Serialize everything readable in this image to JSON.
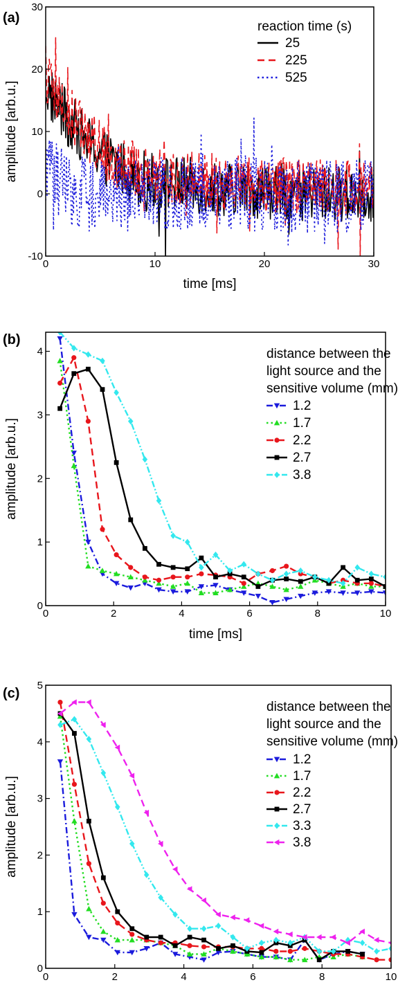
{
  "chart_data": [
    {
      "type": "line",
      "panel": "(a)",
      "xlabel": "time [ms]",
      "ylabel": "amplitude [arb.u.]",
      "xlim": [
        0,
        30
      ],
      "ylim": [
        -10,
        30
      ],
      "xticks": [
        "0",
        "10",
        "20",
        "30"
      ],
      "yticks": [
        "-10",
        "0",
        "10",
        "20",
        "30"
      ],
      "legend_title": [
        "reaction time (s)"
      ],
      "legend_position": "top-right",
      "noisy": true,
      "series": [
        {
          "name": "25",
          "color": "#000000",
          "dash": "solid",
          "marker": "none",
          "x": [
            0,
            2,
            4,
            6,
            8,
            10,
            15,
            20,
            25,
            30
          ],
          "y": [
            17,
            12,
            8,
            5,
            3,
            2,
            1,
            0.5,
            0,
            0
          ]
        },
        {
          "name": "225",
          "color": "#e8161c",
          "dash": "dash",
          "marker": "none",
          "x": [
            0,
            2,
            4,
            6,
            8,
            10,
            15,
            20,
            25,
            30
          ],
          "y": [
            18,
            13,
            9,
            6,
            4,
            3,
            2,
            1.5,
            1,
            1
          ]
        },
        {
          "name": "525",
          "color": "#1b1bdc",
          "dash": "dot",
          "marker": "none",
          "x": [
            0,
            2,
            4,
            6,
            8,
            10,
            15,
            20,
            25,
            30
          ],
          "y": [
            3,
            1,
            0,
            0,
            0,
            0,
            0,
            0,
            -0.5,
            -0.5
          ]
        }
      ]
    },
    {
      "type": "line",
      "panel": "(b)",
      "xlabel": "time [ms]",
      "ylabel": "amplitude [arb.u.]",
      "xlim": [
        0,
        10
      ],
      "ylim": [
        0,
        4.3
      ],
      "xticks": [
        "0",
        "2",
        "4",
        "6",
        "8",
        "10"
      ],
      "yticks": [
        "0",
        "1",
        "2",
        "3",
        "4"
      ],
      "legend_title": [
        "distance between the",
        "light source and the",
        "sensitive volume (mm)"
      ],
      "legend_position": "top-right",
      "noisy": false,
      "series": [
        {
          "name": "1.2",
          "color": "#1b1bdc",
          "dash": "dashdot",
          "marker": "tri-down",
          "x": [
            0.42,
            0.83,
            1.25,
            1.67,
            2.08,
            2.5,
            2.92,
            3.33,
            3.75,
            4.17,
            4.58,
            5.0,
            5.42,
            5.83,
            6.25,
            6.67,
            7.08,
            7.5,
            7.92,
            8.33,
            8.75,
            9.17,
            9.58,
            10.0
          ],
          "y": [
            4.2,
            2.4,
            1.0,
            0.5,
            0.35,
            0.28,
            0.35,
            0.25,
            0.22,
            0.22,
            0.3,
            0.32,
            0.25,
            0.2,
            0.15,
            0.05,
            0.1,
            0.15,
            0.2,
            0.22,
            0.2,
            0.2,
            0.22,
            0.2
          ]
        },
        {
          "name": "1.7",
          "color": "#22dd22",
          "dash": "dot",
          "marker": "tri-up",
          "x": [
            0.42,
            0.83,
            1.25,
            1.67,
            2.08,
            2.5,
            2.92,
            3.33,
            3.75,
            4.17,
            4.58,
            5.0,
            5.42,
            5.83,
            6.25,
            6.67,
            7.08,
            7.5,
            7.92,
            8.33,
            8.75,
            9.17,
            9.58,
            10.0
          ],
          "y": [
            3.85,
            2.2,
            0.62,
            0.55,
            0.5,
            0.45,
            0.4,
            0.35,
            0.3,
            0.35,
            0.2,
            0.2,
            0.25,
            0.3,
            0.35,
            0.3,
            0.25,
            0.3,
            0.4,
            0.35,
            0.3,
            0.35,
            0.3,
            0.3
          ]
        },
        {
          "name": "2.2",
          "color": "#e8161c",
          "dash": "dash",
          "marker": "circle",
          "x": [
            0.42,
            0.83,
            1.25,
            1.67,
            2.08,
            2.5,
            2.92,
            3.33,
            3.75,
            4.17,
            4.58,
            5.0,
            5.42,
            5.83,
            6.25,
            6.67,
            7.08,
            7.5,
            7.92,
            8.33,
            8.75,
            9.17,
            9.58,
            10.0
          ],
          "y": [
            3.5,
            3.9,
            2.9,
            1.2,
            0.8,
            0.6,
            0.45,
            0.4,
            0.45,
            0.45,
            0.5,
            0.48,
            0.45,
            0.35,
            0.5,
            0.55,
            0.62,
            0.5,
            0.45,
            0.35,
            0.4,
            0.35,
            0.35,
            0.3
          ]
        },
        {
          "name": "2.7",
          "color": "#000000",
          "dash": "solid",
          "marker": "square",
          "x": [
            0.42,
            0.83,
            1.25,
            1.67,
            2.08,
            2.5,
            2.92,
            3.33,
            3.75,
            4.17,
            4.58,
            5.0,
            5.42,
            5.83,
            6.25,
            6.67,
            7.08,
            7.5,
            7.92,
            8.33,
            8.75,
            9.17,
            9.58,
            10.0
          ],
          "y": [
            3.1,
            3.65,
            3.72,
            3.4,
            2.25,
            1.35,
            0.9,
            0.65,
            0.6,
            0.58,
            0.75,
            0.45,
            0.5,
            0.45,
            0.3,
            0.4,
            0.42,
            0.38,
            0.45,
            0.35,
            0.6,
            0.4,
            0.42,
            0.3
          ]
        },
        {
          "name": "3.8",
          "color": "#33e8ee",
          "dash": "dashdotdot",
          "marker": "diamond",
          "x": [
            0.42,
            0.83,
            1.25,
            1.67,
            2.08,
            2.5,
            2.92,
            3.33,
            3.75,
            4.17,
            4.58,
            5.0,
            5.42,
            5.83,
            6.25,
            6.67,
            7.08,
            7.5,
            7.92,
            8.33,
            8.75,
            9.17,
            9.58,
            10.0
          ],
          "y": [
            4.3,
            4.05,
            3.95,
            3.85,
            3.35,
            2.9,
            2.3,
            1.65,
            1.1,
            1.0,
            0.6,
            0.8,
            0.55,
            0.65,
            0.5,
            0.4,
            0.5,
            0.55,
            0.45,
            0.4,
            0.35,
            0.6,
            0.5,
            0.45
          ]
        }
      ]
    },
    {
      "type": "line",
      "panel": "(c)",
      "xlabel": "time [ms]",
      "ylabel": "amplitude [arb.u.]",
      "xlim": [
        0,
        10
      ],
      "ylim": [
        0,
        5
      ],
      "xticks": [
        "0",
        "2",
        "4",
        "6",
        "8",
        "10"
      ],
      "yticks": [
        "0",
        "1",
        "2",
        "3",
        "4",
        "5"
      ],
      "legend_title": [
        "distance between the",
        "light source and the",
        "sensitive volume (mm)"
      ],
      "legend_position": "top-right",
      "noisy": false,
      "series": [
        {
          "name": "1.2",
          "color": "#1b1bdc",
          "dash": "dashdot",
          "marker": "tri-down",
          "x": [
            0.42,
            0.83,
            1.25,
            1.67,
            2.08,
            2.5,
            2.92,
            3.33,
            3.75,
            4.17,
            4.58,
            5.0,
            5.42,
            5.83,
            6.25,
            6.67,
            7.08,
            7.5,
            7.92,
            8.33,
            8.75,
            9.17
          ],
          "y": [
            3.65,
            0.95,
            0.55,
            0.5,
            0.28,
            0.28,
            0.35,
            0.45,
            0.25,
            0.2,
            0.15,
            0.28,
            0.3,
            0.25,
            0.2,
            0.2,
            0.15,
            0.5,
            0.15,
            0.25,
            0.3,
            0.25
          ]
        },
        {
          "name": "1.7",
          "color": "#22dd22",
          "dash": "dot",
          "marker": "tri-up",
          "x": [
            0.42,
            0.83,
            1.25,
            1.67,
            2.08,
            2.5,
            2.92,
            3.33,
            3.75,
            4.17,
            4.58,
            5.0,
            5.42,
            5.83,
            6.25,
            6.67,
            7.08,
            7.5,
            7.92,
            8.33,
            8.75,
            9.17
          ],
          "y": [
            4.45,
            2.6,
            1.05,
            0.65,
            0.5,
            0.5,
            0.5,
            0.45,
            0.4,
            0.25,
            0.25,
            0.35,
            0.3,
            0.25,
            0.2,
            0.2,
            0.15,
            0.15,
            0.2,
            0.2,
            0.25,
            0.2
          ]
        },
        {
          "name": "2.2",
          "color": "#e8161c",
          "dash": "dash",
          "marker": "circle",
          "x": [
            0.42,
            0.83,
            1.25,
            1.67,
            2.08,
            2.5,
            2.92,
            3.33,
            3.75,
            4.17,
            4.58,
            5.0,
            5.42,
            5.83,
            6.25,
            6.67,
            7.08,
            7.5,
            7.92,
            8.33,
            8.75,
            9.17,
            9.58,
            10.0
          ],
          "y": [
            4.7,
            3.25,
            1.85,
            1.15,
            0.8,
            0.6,
            0.5,
            0.45,
            0.45,
            0.4,
            0.38,
            0.38,
            0.38,
            0.35,
            0.35,
            0.3,
            0.3,
            0.35,
            0.3,
            0.25,
            0.25,
            0.2,
            0.15,
            0.15
          ]
        },
        {
          "name": "2.7",
          "color": "#000000",
          "dash": "solid",
          "marker": "square",
          "x": [
            0.42,
            0.83,
            1.25,
            1.67,
            2.08,
            2.5,
            2.92,
            3.33,
            3.75,
            4.17,
            4.58,
            5.0,
            5.42,
            5.83,
            6.25,
            6.67,
            7.08,
            7.5,
            7.92,
            8.33,
            8.75,
            9.17
          ],
          "y": [
            4.5,
            4.15,
            2.6,
            1.6,
            1.0,
            0.7,
            0.55,
            0.55,
            0.4,
            0.55,
            0.5,
            0.35,
            0.4,
            0.3,
            0.28,
            0.45,
            0.4,
            0.5,
            0.15,
            0.3,
            0.3,
            0.25
          ]
        },
        {
          "name": "3.3",
          "color": "#33e8ee",
          "dash": "dashdotdot",
          "marker": "diamond",
          "x": [
            0.42,
            0.83,
            1.25,
            1.67,
            2.08,
            2.5,
            2.92,
            3.33,
            3.75,
            4.17,
            4.58,
            5.0,
            5.42,
            5.83,
            6.25,
            6.67,
            7.08,
            7.5,
            7.92,
            8.33,
            8.75,
            9.17,
            9.58,
            10.0
          ],
          "y": [
            4.3,
            4.4,
            4.05,
            3.45,
            2.85,
            2.2,
            1.65,
            1.25,
            0.95,
            0.7,
            0.7,
            0.75,
            0.55,
            0.35,
            0.45,
            0.5,
            0.45,
            0.55,
            0.3,
            0.3,
            0.5,
            0.45,
            0.3,
            0.35
          ]
        },
        {
          "name": "3.8",
          "color": "#ee22ee",
          "dash": "dash",
          "marker": "tri-left",
          "x": [
            0.42,
            0.83,
            1.25,
            1.67,
            2.08,
            2.5,
            2.92,
            3.33,
            3.75,
            4.17,
            4.58,
            5.0,
            5.42,
            5.83,
            6.25,
            6.67,
            7.08,
            7.5,
            7.92,
            8.33,
            8.75,
            9.17,
            9.58,
            10.0
          ],
          "y": [
            4.5,
            4.7,
            4.7,
            4.3,
            3.9,
            3.4,
            2.75,
            2.2,
            1.75,
            1.4,
            1.2,
            0.95,
            0.9,
            0.85,
            0.75,
            0.65,
            0.6,
            0.55,
            0.55,
            0.55,
            0.45,
            0.65,
            0.5,
            0.45
          ]
        }
      ]
    }
  ]
}
